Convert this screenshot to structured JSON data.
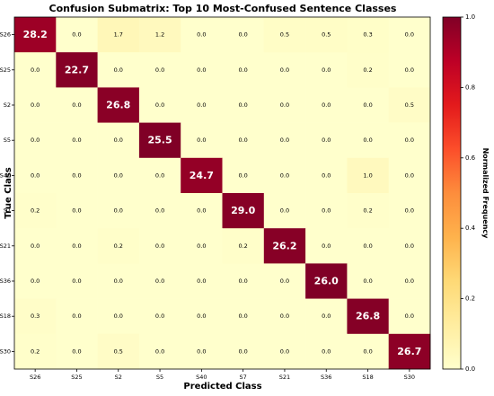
{
  "chart_data": {
    "type": "heatmap",
    "title": "Confusion Submatrix: Top 10 Most-Confused Sentence Classes",
    "xlabel": "Predicted Class",
    "ylabel": "True Class",
    "colorbar_label": "Normalized Frequency",
    "row_labels": [
      "S26",
      "S25",
      "S2",
      "S5",
      "S40",
      "S7",
      "S21",
      "S36",
      "S18",
      "S30"
    ],
    "col_labels": [
      "S26",
      "S25",
      "S2",
      "S5",
      "S40",
      "S7",
      "S21",
      "S36",
      "S18",
      "S30"
    ],
    "colorbar_range": [
      0.0,
      1.0
    ],
    "colorbar_ticks": [
      "0.0",
      "0.2",
      "0.4",
      "0.6",
      "0.8",
      "1.0"
    ],
    "colormap": [
      "#ffffcc",
      "#ffeda0",
      "#fed976",
      "#feb24c",
      "#fd8d3c",
      "#fc4e2a",
      "#e31a1c",
      "#bd0026",
      "#800026"
    ],
    "cell_labels": [
      [
        "28.2",
        "0.0",
        "1.7",
        "1.2",
        "0.0",
        "0.0",
        "0.5",
        "0.5",
        "0.3",
        "0.0"
      ],
      [
        "0.0",
        "22.7",
        "0.0",
        "0.0",
        "0.0",
        "0.0",
        "0.0",
        "0.0",
        "0.2",
        "0.0"
      ],
      [
        "0.0",
        "0.0",
        "26.8",
        "0.0",
        "0.0",
        "0.0",
        "0.0",
        "0.0",
        "0.0",
        "0.5"
      ],
      [
        "0.0",
        "0.0",
        "0.0",
        "25.5",
        "0.0",
        "0.0",
        "0.0",
        "0.0",
        "0.0",
        "0.0"
      ],
      [
        "0.0",
        "0.0",
        "0.0",
        "0.0",
        "24.7",
        "0.0",
        "0.0",
        "0.0",
        "1.0",
        "0.0"
      ],
      [
        "0.2",
        "0.0",
        "0.0",
        "0.0",
        "0.0",
        "29.0",
        "0.0",
        "0.0",
        "0.2",
        "0.0"
      ],
      [
        "0.0",
        "0.0",
        "0.2",
        "0.0",
        "0.0",
        "0.2",
        "26.2",
        "0.0",
        "0.0",
        "0.0"
      ],
      [
        "0.0",
        "0.0",
        "0.0",
        "0.0",
        "0.0",
        "0.0",
        "0.0",
        "26.0",
        "0.0",
        "0.0"
      ],
      [
        "0.3",
        "0.0",
        "0.0",
        "0.0",
        "0.0",
        "0.0",
        "0.0",
        "0.0",
        "26.8",
        "0.0"
      ],
      [
        "0.2",
        "0.0",
        "0.5",
        "0.0",
        "0.0",
        "0.0",
        "0.0",
        "0.0",
        "0.0",
        "26.7"
      ]
    ],
    "normalized_values": [
      [
        0.94,
        0.0,
        0.057,
        0.04,
        0.0,
        0.0,
        0.017,
        0.017,
        0.01,
        0.0
      ],
      [
        0.0,
        0.99,
        0.0,
        0.0,
        0.0,
        0.0,
        0.0,
        0.0,
        0.009,
        0.0
      ],
      [
        0.0,
        0.0,
        0.98,
        0.0,
        0.0,
        0.0,
        0.0,
        0.0,
        0.0,
        0.018
      ],
      [
        0.0,
        0.0,
        0.0,
        1.0,
        0.0,
        0.0,
        0.0,
        0.0,
        0.0,
        0.0
      ],
      [
        0.0,
        0.0,
        0.0,
        0.0,
        0.96,
        0.0,
        0.0,
        0.0,
        0.039,
        0.0
      ],
      [
        0.007,
        0.0,
        0.0,
        0.0,
        0.0,
        0.986,
        0.0,
        0.0,
        0.007,
        0.0
      ],
      [
        0.0,
        0.0,
        0.008,
        0.0,
        0.0,
        0.008,
        0.985,
        0.0,
        0.0,
        0.0
      ],
      [
        0.0,
        0.0,
        0.0,
        0.0,
        0.0,
        0.0,
        0.0,
        1.0,
        0.0,
        0.0
      ],
      [
        0.011,
        0.0,
        0.0,
        0.0,
        0.0,
        0.0,
        0.0,
        0.0,
        0.989,
        0.0
      ],
      [
        0.007,
        0.0,
        0.018,
        0.0,
        0.0,
        0.0,
        0.0,
        0.0,
        0.0,
        0.974
      ]
    ]
  }
}
